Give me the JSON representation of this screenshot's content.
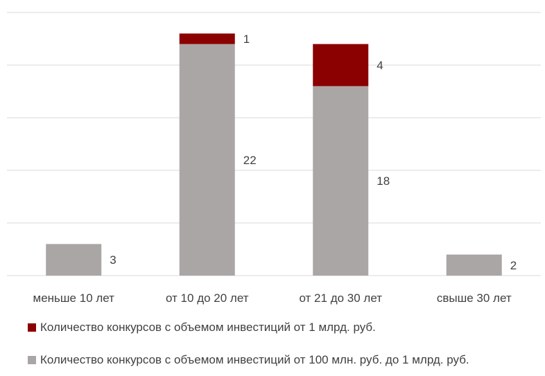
{
  "chart_data": {
    "type": "bar",
    "stacked": true,
    "categories": [
      "меньше 10 лет",
      "от 10 до 20 лет",
      "от 21 до 30 лет",
      "свыше 30 лет"
    ],
    "series": [
      {
        "name": "Количество конкурсов с объемом инвестиций от 100 млн. руб. до 1 млрд. руб.",
        "values": [
          3,
          22,
          18,
          2
        ],
        "color": "#aba6a6"
      },
      {
        "name": "Количество конкурсов с объемом инвестиций от 1 млрд. руб.",
        "values": [
          0,
          1,
          4,
          0
        ],
        "color": "#8b0000"
      }
    ],
    "ylim": [
      0,
      25
    ],
    "grid": true,
    "legend_position": "bottom"
  }
}
